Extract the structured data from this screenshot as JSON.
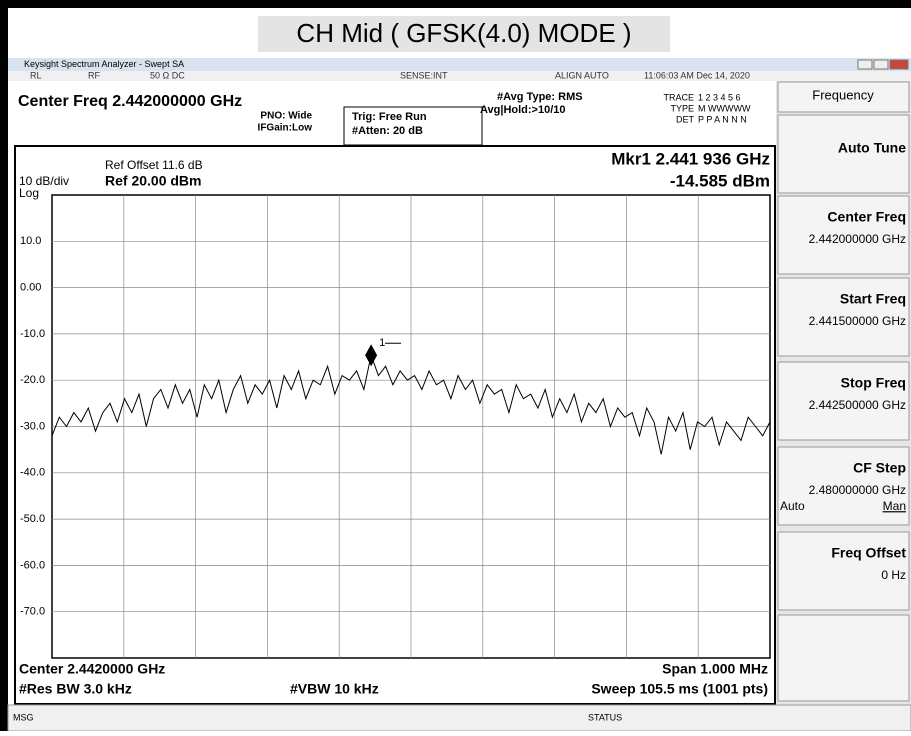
{
  "page_title": "CH Mid ( GFSK(4.0) MODE )",
  "window_title": "Keysight Spectrum Analyzer - Swept SA",
  "status_bar": [
    "RL",
    "RF",
    "50 Ω  DC",
    "SENSE:INT",
    "ALIGN AUTO",
    "11:06:03 AM Dec 14, 2020"
  ],
  "header": {
    "center_freq": "Center Freq 2.442000000 GHz",
    "pno": "PNO: Wide",
    "ifgain": "IFGain:Low",
    "trig": "Trig: Free Run",
    "atten": "#Atten: 20 dB",
    "avg_type": "#Avg Type: RMS",
    "avg_hold": "Avg|Hold:>10/10",
    "trace_label": "TRACE",
    "trace_vals": "1 2 3 4 5 6",
    "type_label": "TYPE",
    "type_vals": "M WWWWW",
    "det_label": "DET",
    "det_vals": "P P A N N N"
  },
  "display": {
    "ref_offset": "Ref Offset 11.6 dB",
    "scale": "10 dB/div",
    "ref": "Ref 20.00 dBm",
    "log": "Log",
    "marker_freq": "Mkr1 2.441 936 GHz",
    "marker_level": "-14.585 dBm",
    "marker_id": "1",
    "ylim": [
      -80,
      20
    ],
    "yticks": [
      {
        "value": 10,
        "label": "10.0"
      },
      {
        "value": 0,
        "label": "0.00"
      },
      {
        "value": -10,
        "label": "-10.0"
      },
      {
        "value": -20,
        "label": "-20.0"
      },
      {
        "value": -30,
        "label": "-30.0"
      },
      {
        "value": -40,
        "label": "-40.0"
      },
      {
        "value": -50,
        "label": "-50.0"
      },
      {
        "value": -60,
        "label": "-60.0"
      },
      {
        "value": -70,
        "label": "-70.0"
      }
    ],
    "grid": true
  },
  "trace": {
    "color": "#000000",
    "values": [
      -32,
      -28,
      -30,
      -27,
      -29,
      -26,
      -31,
      -27,
      -25,
      -29,
      -24,
      -27,
      -23,
      -30,
      -24,
      -22,
      -26,
      -21,
      -25,
      -22,
      -28,
      -21,
      -24,
      -20,
      -27,
      -22,
      -19,
      -25,
      -21,
      -23,
      -20,
      -26,
      -19,
      -22,
      -18,
      -24,
      -20,
      -21,
      -17,
      -23,
      -19,
      -20,
      -18,
      -22,
      -14.6,
      -19,
      -17,
      -21,
      -18,
      -20,
      -19,
      -22,
      -18,
      -21,
      -20,
      -24,
      -19,
      -22,
      -20,
      -25,
      -21,
      -23,
      -22,
      -27,
      -21,
      -24,
      -23,
      -26,
      -22,
      -28,
      -24,
      -27,
      -23,
      -29,
      -25,
      -27,
      -24,
      -30,
      -26,
      -28,
      -27,
      -32,
      -26,
      -29,
      -36,
      -28,
      -31,
      -27,
      -35,
      -29,
      -30,
      -28,
      -34,
      -29,
      -31,
      -33,
      -28,
      -30,
      -32,
      -29
    ]
  },
  "footer": {
    "center": "Center 2.4420000 GHz",
    "span": "Span 1.000 MHz",
    "rbw": "#Res BW 3.0 kHz",
    "vbw": "#VBW 10 kHz",
    "sweep": "Sweep  105.5 ms (1001 pts)"
  },
  "softkeys": {
    "menu": "Frequency",
    "keys": [
      {
        "label": "Auto Tune"
      },
      {
        "label": "Center Freq",
        "value": "2.442000000 GHz"
      },
      {
        "label": "Start Freq",
        "value": "2.441500000 GHz"
      },
      {
        "label": "Stop Freq",
        "value": "2.442500000 GHz"
      },
      {
        "label": "CF Step",
        "value": "2.480000000 GHz",
        "auto": "Auto",
        "man": "Man"
      },
      {
        "label": "Freq Offset",
        "value": "0 Hz"
      }
    ]
  },
  "bottom": {
    "msg": "MSG",
    "status": "STATUS"
  }
}
